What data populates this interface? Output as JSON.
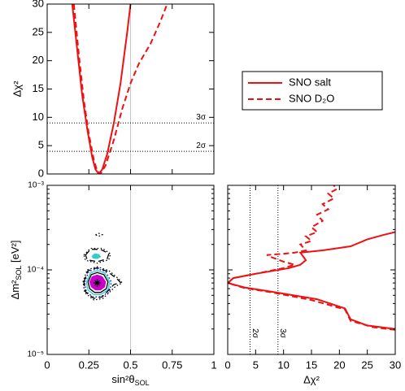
{
  "chart_data": [
    {
      "type": "line",
      "y_label": "Δχ²",
      "xlim": [
        0,
        1
      ],
      "ylim": [
        0,
        30
      ],
      "yticks": [
        0,
        5,
        10,
        15,
        20,
        25,
        30
      ],
      "vline": 0.5,
      "sigma_levels": [
        {
          "value": 4,
          "label": "2σ"
        },
        {
          "value": 9,
          "label": "3σ"
        }
      ],
      "series": [
        {
          "name": "SNO salt",
          "color": "#ee1111",
          "dash": "solid",
          "x": [
            0.15,
            0.18,
            0.21,
            0.24,
            0.27,
            0.29,
            0.31,
            0.33,
            0.36,
            0.4,
            0.44,
            0.48,
            0.5
          ],
          "values": [
            30,
            22,
            14,
            8,
            3,
            0.8,
            0,
            0.8,
            3.5,
            9,
            16,
            25,
            30
          ]
        },
        {
          "name": "SNO D₂O",
          "color": "#ee1111",
          "dash": "dashed",
          "x": [
            0.16,
            0.19,
            0.22,
            0.25,
            0.28,
            0.3,
            0.32,
            0.35,
            0.4,
            0.45,
            0.5,
            0.55,
            0.58,
            0.62,
            0.68,
            0.72
          ],
          "values": [
            30,
            21,
            13,
            7,
            2.5,
            0.5,
            0,
            1.5,
            6,
            11.5,
            16,
            19.5,
            21,
            23,
            27,
            30
          ]
        }
      ]
    },
    {
      "type": "contour",
      "x_label": [
        "sin²θ",
        "SOL"
      ],
      "y_label": [
        "Δm²",
        "SOL",
        " [eV²]"
      ],
      "xlim": [
        0,
        1
      ],
      "xticks": [
        0,
        0.25,
        0.5,
        0.75,
        1
      ],
      "ylim": [
        1e-05,
        0.001
      ],
      "log_y": true,
      "yticks": [
        {
          "value": 1e-05,
          "label": "10⁻⁵"
        },
        {
          "value": 0.0001,
          "label": "10⁻⁴"
        },
        {
          "value": 0.001,
          "label": "10⁻³"
        }
      ],
      "vline": 0.5,
      "best_fit": {
        "x": 0.3,
        "y": 7e-05
      },
      "contours": [
        {
          "color": "#cc00cc",
          "fill": true,
          "dash": "solid",
          "x": [
            0.255,
            0.27,
            0.3,
            0.33,
            0.35,
            0.345,
            0.32,
            0.29,
            0.265
          ],
          "y": [
            7.2e-05,
            8.3e-05,
            8.7e-05,
            8.3e-05,
            7.2e-05,
            6.3e-05,
            5.8e-05,
            5.8e-05,
            6.3e-05
          ]
        },
        {
          "color": "#33cccc",
          "fill": true,
          "dash": "solid",
          "x": [
            0.27,
            0.285,
            0.31,
            0.32,
            0.3,
            0.275
          ],
          "y": [
            0.000145,
            0.000155,
            0.000152,
            0.000143,
            0.000136,
            0.000138
          ]
        },
        {
          "color": "#000000",
          "fill": false,
          "dash": "solid",
          "x": [
            0.245,
            0.265,
            0.3,
            0.34,
            0.365,
            0.355,
            0.32,
            0.285,
            0.255
          ],
          "y": [
            7.2e-05,
            8.8e-05,
            9.3e-05,
            8.8e-05,
            7.2e-05,
            6e-05,
            5.4e-05,
            5.4e-05,
            6e-05
          ]
        },
        {
          "color": "#33cccc",
          "fill": false,
          "dash": "solid",
          "x": [
            0.235,
            0.26,
            0.3,
            0.345,
            0.375,
            0.365,
            0.32,
            0.28,
            0.245
          ],
          "y": [
            7.2e-05,
            9.2e-05,
            9.8e-05,
            9.2e-05,
            7.2e-05,
            5.8e-05,
            5.1e-05,
            5.1e-05,
            5.8e-05
          ]
        },
        {
          "color": "#0000ee",
          "fill": false,
          "dash": "dotted",
          "x": [
            0.225,
            0.25,
            0.3,
            0.35,
            0.385,
            0.375,
            0.32,
            0.275,
            0.235
          ],
          "y": [
            7.2e-05,
            9.6e-05,
            0.000103,
            9.6e-05,
            7.2e-05,
            5.5e-05,
            4.8e-05,
            4.8e-05,
            5.5e-05
          ]
        },
        {
          "color": "#000000",
          "fill": false,
          "dash": "dashed",
          "x": [
            0.22,
            0.245,
            0.3,
            0.36,
            0.42,
            0.44,
            0.4,
            0.33,
            0.28,
            0.23
          ],
          "y": [
            7.2e-05,
            9.8e-05,
            0.000106,
            9.6e-05,
            7.8e-05,
            7.1e-05,
            6.7e-05,
            4.8e-05,
            4.6e-05,
            5.5e-05
          ]
        },
        {
          "color": "#000000",
          "fill": false,
          "dash": "dotted",
          "x": [
            0.215,
            0.24,
            0.3,
            0.37,
            0.43,
            0.45,
            0.41,
            0.335,
            0.28,
            0.225
          ],
          "y": [
            7.2e-05,
            0.0001,
            0.000109,
            9.8e-05,
            7.8e-05,
            7e-05,
            6.4e-05,
            4.6e-05,
            4.4e-05,
            5.4e-05
          ]
        },
        {
          "color": "#000000",
          "fill": false,
          "dash": "dashed",
          "x": [
            0.23,
            0.26,
            0.32,
            0.37,
            0.36,
            0.3,
            0.24
          ],
          "y": [
            0.00015,
            0.000175,
            0.000175,
            0.000155,
            0.000135,
            0.000125,
            0.000132
          ]
        },
        {
          "color": "#000000",
          "fill": false,
          "dash": "dotted",
          "x": [
            0.22,
            0.26,
            0.33,
            0.38,
            0.37,
            0.3,
            0.23
          ],
          "y": [
            0.00015,
            0.00018,
            0.00018,
            0.000155,
            0.000132,
            0.00012,
            0.00013
          ]
        },
        {
          "color": "#000000",
          "fill": false,
          "dash": "dotted",
          "x": [
            0.29,
            0.31,
            0.33,
            0.31
          ],
          "y": [
            0.00026,
            0.00027,
            0.00026,
            0.00025
          ]
        }
      ]
    },
    {
      "type": "line",
      "x_label": "Δχ²",
      "xlim": [
        0,
        30
      ],
      "xticks": [
        0,
        5,
        10,
        15,
        20,
        25,
        30
      ],
      "ylim": [
        1e-05,
        0.001
      ],
      "log_y": true,
      "sigma_levels": [
        {
          "value": 4,
          "label": "2σ"
        },
        {
          "value": 9,
          "label": "3σ"
        }
      ],
      "series": [
        {
          "color": "#ee1111",
          "dash": "solid",
          "x": [
            30,
            25,
            22,
            21,
            16,
            8,
            3,
            0,
            1,
            5,
            11,
            13,
            14,
            13,
            17,
            22,
            25,
            28,
            30
          ],
          "values": [
            2e-05,
            2.2e-05,
            2.6e-05,
            3.5e-05,
            4.5e-05,
            5.5e-05,
            6.2e-05,
            7e-05,
            8e-05,
            9e-05,
            0.000105,
            0.000115,
            0.00013,
            0.00016,
            0.00017,
            0.00019,
            0.00023,
            0.00026,
            0.00028
          ]
        },
        {
          "color": "#ee1111",
          "dash": "dashed",
          "x": [
            30,
            26,
            22,
            21,
            15,
            8,
            3,
            0,
            1,
            5,
            10,
            12,
            10,
            8,
            7,
            10,
            12,
            14,
            13,
            15,
            14,
            16,
            15,
            17,
            16,
            18,
            17,
            19,
            18,
            19.5,
            19
          ],
          "values": [
            1.95e-05,
            2.1e-05,
            2.5e-05,
            3.4e-05,
            4.4e-05,
            5.4e-05,
            6.1e-05,
            7e-05,
            8e-05,
            9e-05,
            0.000105,
            0.000115,
            0.000125,
            0.00014,
            0.00015,
            0.000155,
            0.00016,
            0.00017,
            0.0002,
            0.00022,
            0.00025,
            0.00028,
            0.00032,
            0.00038,
            0.00045,
            0.00052,
            0.0006,
            0.0007,
            0.0008,
            0.0009,
            0.001
          ]
        }
      ]
    }
  ]
}
